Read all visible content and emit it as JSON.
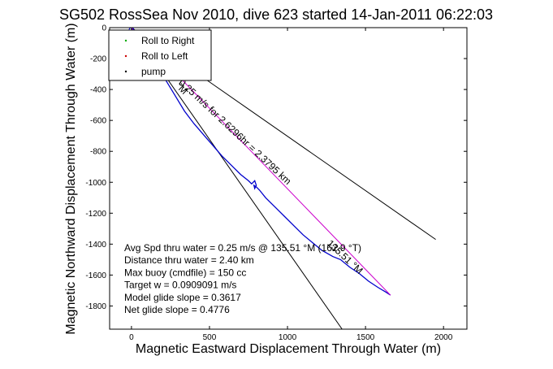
{
  "chart_data": {
    "type": "line",
    "title": "SG502 RossSea Nov 2010, dive 623 started 14-Jan-2011 06:22:03",
    "xlabel": "Magnetic Eastward Displacement Through Water (m)",
    "ylabel": "Magnetic Northward Displacement Through Water (m)",
    "xlim": [
      -140,
      2150
    ],
    "ylim": [
      -1950,
      0
    ],
    "xticks": [
      0,
      500,
      1000,
      1500,
      2000
    ],
    "yticks": [
      0,
      -200,
      -400,
      -600,
      -800,
      -1000,
      -1200,
      -1400,
      -1600,
      -1800
    ],
    "grid": false,
    "legend": {
      "position": "top-left",
      "entries": [
        {
          "label": "Roll to Right",
          "color": "#00aa00",
          "marker": "."
        },
        {
          "label": "Roll to Left",
          "color": "#cc0000",
          "marker": "."
        },
        {
          "label": "pump",
          "color": "#000000",
          "marker": "."
        }
      ]
    },
    "series": [
      {
        "color": "#0000cc",
        "x": [
          0,
          40,
          90,
          150,
          220,
          280,
          340,
          400,
          460,
          520,
          580,
          640,
          700,
          750,
          770,
          790,
          800,
          790,
          785,
          800,
          820,
          860,
          920,
          980,
          1040,
          1100,
          1160,
          1220,
          1290,
          1340,
          1400,
          1460,
          1520,
          1580,
          1630,
          1660
        ],
        "y": [
          0,
          -60,
          -140,
          -240,
          -340,
          -440,
          -540,
          -620,
          -690,
          -760,
          -830,
          -890,
          -950,
          -990,
          -1010,
          -990,
          -1020,
          -1040,
          -1020,
          -1030,
          -1050,
          -1100,
          -1160,
          -1220,
          -1280,
          -1340,
          -1390,
          -1440,
          -1480,
          -1500,
          -1550,
          -1590,
          -1640,
          -1680,
          -1710,
          -1730
        ]
      },
      {
        "color": "#cc00cc",
        "x": [
          0,
          1660
        ],
        "y": [
          0,
          -1730
        ]
      }
    ],
    "reference_lines": [
      {
        "color": "#000000",
        "x": [
          0,
          1950
        ],
        "y": [
          0,
          -1370
        ]
      },
      {
        "color": "#000000",
        "x": [
          0,
          1350
        ],
        "y": [
          0,
          -1950
        ]
      }
    ],
    "annotations": [
      {
        "text": "0.25 m/s for 2.6296hr = 2.3795 km",
        "x": 300,
        "y": -360,
        "angle": 43
      },
      {
        "text": "135.51 °M",
        "x": 1250,
        "y": -1400,
        "angle": 43
      },
      {
        "text": "°M",
        "x": 280,
        "y": -380,
        "angle": 45
      }
    ],
    "textbox": [
      "Avg Spd thru water =  0.25 m/s @ 135.51 °M (162.9 °T)",
      "Distance thru water =  2.40 km",
      "Max buoy (cmdfile) = 150 cc",
      "Target w = 0.0909091 m/s",
      "Model glide slope = 0.3617",
      "Net glide slope = 0.4776"
    ]
  }
}
